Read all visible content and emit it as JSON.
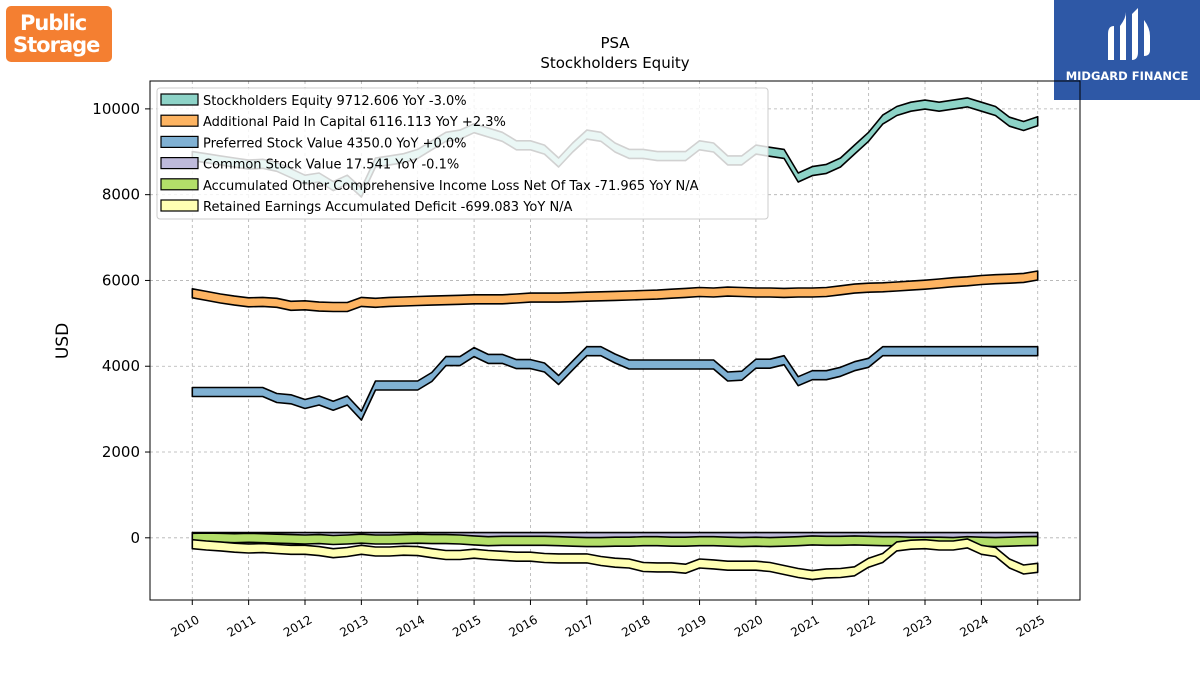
{
  "logos": {
    "left": {
      "line1": "Public",
      "line2": "Storage",
      "color": "#f47f31"
    },
    "right": {
      "name": "MIDGARD FINANCE",
      "color": "#2e58a6"
    }
  },
  "chart_data": {
    "type": "line",
    "title": "PSA",
    "subtitle": "Stockholders  Equity",
    "xlabel": "",
    "ylabel": "USD",
    "xlim": [
      2009.25,
      2025.75
    ],
    "ylim": [
      -1450,
      10650
    ],
    "yticks": [
      0,
      2000,
      4000,
      6000,
      8000,
      10000
    ],
    "xticks": [
      "2010",
      "2011",
      "2012",
      "2013",
      "2014",
      "2015",
      "2016",
      "2017",
      "2018",
      "2019",
      "2020",
      "2021",
      "2022",
      "2023",
      "2024",
      "2025"
    ],
    "grid": true,
    "legend_position": "top-left",
    "x": [
      2010.0,
      2010.25,
      2010.5,
      2010.75,
      2011.0,
      2011.25,
      2011.5,
      2011.75,
      2012.0,
      2012.25,
      2012.5,
      2012.75,
      2013.0,
      2013.25,
      2013.5,
      2013.75,
      2014.0,
      2014.25,
      2014.5,
      2014.75,
      2015.0,
      2015.25,
      2015.5,
      2015.75,
      2016.0,
      2016.25,
      2016.5,
      2016.75,
      2017.0,
      2017.25,
      2017.5,
      2017.75,
      2018.0,
      2018.25,
      2018.5,
      2018.75,
      2019.0,
      2019.25,
      2019.5,
      2019.75,
      2020.0,
      2020.25,
      2020.5,
      2020.75,
      2021.0,
      2021.25,
      2021.5,
      2021.75,
      2022.0,
      2022.25,
      2022.5,
      2022.75,
      2023.0,
      2023.25,
      2023.5,
      2023.75,
      2024.0,
      2024.25,
      2024.5,
      2024.75,
      2025.0
    ],
    "series": [
      {
        "name": "Stockholders Equity",
        "legend": "Stockholders Equity  9712.606 YoY -3.0%",
        "color": "#8dd3c7",
        "values": [
          8900,
          8850,
          8800,
          8750,
          8700,
          8720,
          8650,
          8500,
          8350,
          8400,
          8200,
          8350,
          8050,
          8750,
          8800,
          8850,
          8950,
          9150,
          9350,
          9400,
          9550,
          9450,
          9350,
          9150,
          9150,
          9050,
          8750,
          9100,
          9400,
          9350,
          9100,
          8950,
          8950,
          8900,
          8900,
          8900,
          9150,
          9100,
          8800,
          8800,
          9050,
          9000,
          8950,
          8400,
          8550,
          8600,
          8750,
          9050,
          9350,
          9750,
          9950,
          10050,
          10100,
          10050,
          10100,
          10150,
          10050,
          9950,
          9700,
          9600,
          9712.606
        ]
      },
      {
        "name": "Additional Paid In Capital",
        "legend": "Additional Paid In Capital  6116.113 YoY +2.3%",
        "color": "#fdb462",
        "values": [
          5700,
          5640,
          5580,
          5530,
          5490,
          5500,
          5480,
          5410,
          5420,
          5390,
          5380,
          5380,
          5500,
          5480,
          5500,
          5510,
          5520,
          5530,
          5540,
          5550,
          5560,
          5560,
          5560,
          5580,
          5600,
          5600,
          5600,
          5610,
          5620,
          5630,
          5640,
          5650,
          5660,
          5670,
          5690,
          5710,
          5730,
          5720,
          5740,
          5730,
          5720,
          5720,
          5710,
          5720,
          5720,
          5730,
          5770,
          5810,
          5830,
          5840,
          5860,
          5880,
          5900,
          5930,
          5960,
          5980,
          6010,
          6030,
          6040,
          6060,
          6116.113
        ]
      },
      {
        "name": "Preferred Stock Value",
        "legend": "Preferred Stock Value  4350.0 YoY +0.0%",
        "color": "#80b1d3",
        "values": [
          3400,
          3400,
          3400,
          3400,
          3400,
          3400,
          3260,
          3230,
          3120,
          3200,
          3080,
          3200,
          2850,
          3550,
          3550,
          3550,
          3550,
          3750,
          4120,
          4120,
          4330,
          4170,
          4170,
          4050,
          4050,
          3970,
          3680,
          4020,
          4350,
          4350,
          4180,
          4040,
          4040,
          4040,
          4040,
          4040,
          4040,
          4040,
          3760,
          3780,
          4060,
          4060,
          4140,
          3650,
          3790,
          3790,
          3870,
          4000,
          4080,
          4350,
          4350,
          4350,
          4350,
          4350,
          4350,
          4350,
          4350,
          4350,
          4350,
          4350,
          4350
        ]
      },
      {
        "name": "Common Stock Value",
        "legend": "Common Stock Value  17.541 YoY -0.1%",
        "color": "#bebada",
        "values": [
          17,
          17,
          17,
          17,
          17,
          17,
          17,
          17,
          17,
          17,
          17,
          17,
          17,
          17,
          17,
          17,
          17,
          17,
          17,
          17,
          17,
          17,
          17,
          17,
          17,
          17,
          17,
          17,
          17,
          17,
          17,
          17,
          17,
          17,
          17,
          17,
          17,
          17,
          17,
          17,
          17,
          17,
          17,
          17,
          17,
          17,
          17,
          17,
          17,
          17,
          17,
          17,
          17,
          17,
          17,
          17,
          17,
          17,
          17,
          17,
          17.541
        ]
      },
      {
        "name": "Accumulated Other Comprehensive Income Loss Net Of Tax",
        "legend": "Accumulated Other Comprehensive Income Loss Net Of Tax  -71.965 YoY N/A",
        "color": "#b3de69",
        "values": [
          0,
          5,
          0,
          -10,
          0,
          -10,
          -20,
          -30,
          -40,
          -30,
          -50,
          -40,
          -20,
          -40,
          -40,
          -30,
          -20,
          -30,
          -30,
          -40,
          -60,
          -80,
          -70,
          -70,
          -70,
          -70,
          -80,
          -90,
          -100,
          -100,
          -90,
          -90,
          -80,
          -80,
          -90,
          -90,
          -80,
          -80,
          -90,
          -100,
          -90,
          -100,
          -90,
          -80,
          -60,
          -70,
          -70,
          -60,
          -70,
          -80,
          -80,
          -90,
          -90,
          -90,
          -100,
          -80,
          -90,
          -100,
          -90,
          -80,
          -71.965
        ]
      },
      {
        "name": "Retained Earnings Accumulated Deficit",
        "legend": "Retained Earnings Accumulated Deficit  -699.083 YoY N/A",
        "color": "#ffffb3",
        "values": [
          -150,
          -180,
          -200,
          -230,
          -250,
          -240,
          -260,
          -280,
          -280,
          -310,
          -360,
          -330,
          -280,
          -320,
          -320,
          -300,
          -310,
          -360,
          -400,
          -400,
          -370,
          -400,
          -420,
          -440,
          -440,
          -470,
          -480,
          -480,
          -480,
          -540,
          -580,
          -600,
          -680,
          -690,
          -690,
          -720,
          -600,
          -620,
          -650,
          -650,
          -650,
          -680,
          -750,
          -820,
          -870,
          -830,
          -820,
          -780,
          -580,
          -470,
          -200,
          -160,
          -150,
          -180,
          -180,
          -130,
          -280,
          -330,
          -600,
          -740,
          -699.083
        ]
      }
    ]
  }
}
